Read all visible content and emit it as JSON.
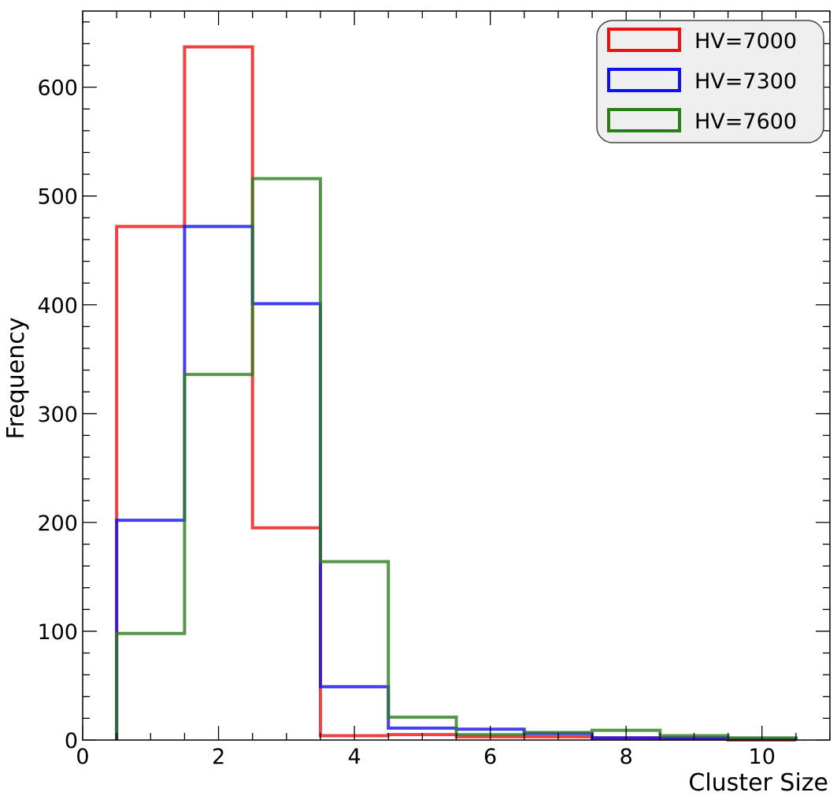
{
  "chart_data": {
    "type": "histogram-step",
    "xlabel": "Cluster Size",
    "ylabel": "Frequency",
    "xlim": [
      0,
      11
    ],
    "ylim": [
      0,
      670
    ],
    "xticks": [
      0,
      2,
      4,
      6,
      8,
      10
    ],
    "yticks": [
      0,
      100,
      200,
      300,
      400,
      500,
      600
    ],
    "grid": false,
    "legend_position": "top-right",
    "bin_edges": [
      0.5,
      1.5,
      2.5,
      3.5,
      4.5,
      5.5,
      6.5,
      7.5,
      8.5,
      9.5,
      10.5
    ],
    "series": [
      {
        "name": "HV=7000",
        "color": "#ee1111",
        "values": [
          472,
          637,
          195,
          4,
          5,
          3,
          3,
          2,
          1,
          0
        ]
      },
      {
        "name": "HV=7300",
        "color": "#1111ee",
        "values": [
          202,
          472,
          401,
          49,
          11,
          10,
          6,
          2,
          2,
          1
        ]
      },
      {
        "name": "HV=7600",
        "color": "#2a7d1a",
        "values": [
          98,
          336,
          516,
          164,
          21,
          5,
          7,
          9,
          4,
          2
        ]
      }
    ]
  }
}
